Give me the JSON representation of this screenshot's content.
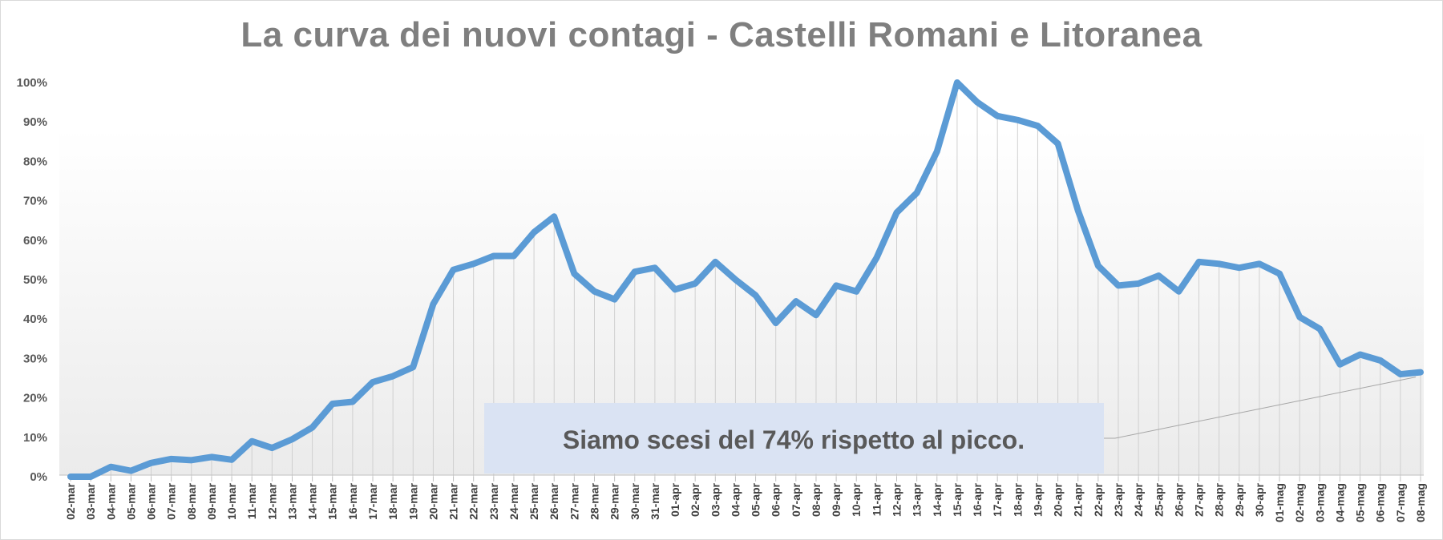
{
  "chart_data": {
    "type": "line",
    "title": "La curva dei nuovi contagi - Castelli Romani e Litoranea",
    "xlabel": "",
    "ylabel": "",
    "ylim": [
      0,
      100
    ],
    "y_ticks": [
      "0%",
      "10%",
      "20%",
      "30%",
      "40%",
      "50%",
      "60%",
      "70%",
      "80%",
      "90%",
      "100%"
    ],
    "grid": "vertical drop lines",
    "legend": "none",
    "line_color": "#5b9bd5",
    "categories": [
      "02-mar",
      "03-mar",
      "04-mar",
      "05-mar",
      "06-mar",
      "07-mar",
      "08-mar",
      "09-mar",
      "10-mar",
      "11-mar",
      "12-mar",
      "13-mar",
      "14-mar",
      "15-mar",
      "16-mar",
      "17-mar",
      "18-mar",
      "19-mar",
      "20-mar",
      "21-mar",
      "22-mar",
      "23-mar",
      "24-mar",
      "25-mar",
      "26-mar",
      "27-mar",
      "28-mar",
      "29-mar",
      "30-mar",
      "31-mar",
      "01-apr",
      "02-apr",
      "03-apr",
      "04-apr",
      "05-apr",
      "06-apr",
      "07-apr",
      "08-apr",
      "09-apr",
      "10-apr",
      "11-apr",
      "12-apr",
      "13-apr",
      "14-apr",
      "15-apr",
      "16-apr",
      "17-apr",
      "18-apr",
      "19-apr",
      "20-apr",
      "21-apr",
      "22-apr",
      "23-apr",
      "24-apr",
      "25-apr",
      "26-apr",
      "27-apr",
      "28-apr",
      "29-apr",
      "30-apr",
      "01-mag",
      "02-mag",
      "03-mag",
      "04-mag",
      "05-mag",
      "06-mag",
      "07-mag",
      "08-mag"
    ],
    "values": [
      0,
      0,
      2.5,
      1.5,
      3.5,
      4.5,
      4.2,
      5,
      4.3,
      9,
      7.3,
      9.5,
      12.5,
      18.5,
      19,
      24,
      25.5,
      27.8,
      43.8,
      52.5,
      54,
      56,
      56,
      62,
      66,
      51.5,
      47,
      45,
      52,
      53,
      47.5,
      49,
      54.5,
      50,
      46,
      39,
      44.5,
      41,
      48.5,
      47,
      55.5,
      67,
      72,
      82.5,
      100,
      95,
      91.5,
      90.5,
      89,
      84.5,
      67.5,
      53.5,
      48.5,
      49,
      51,
      47,
      54.5,
      54,
      53,
      54,
      51.5,
      40.5,
      37.5,
      28.5,
      31,
      29.5,
      26,
      26.5
    ],
    "annotation": {
      "text": "Siamo scesi del 74% rispetto al picco.",
      "fill": "#dae3f3",
      "points_to": "08-mag"
    }
  }
}
